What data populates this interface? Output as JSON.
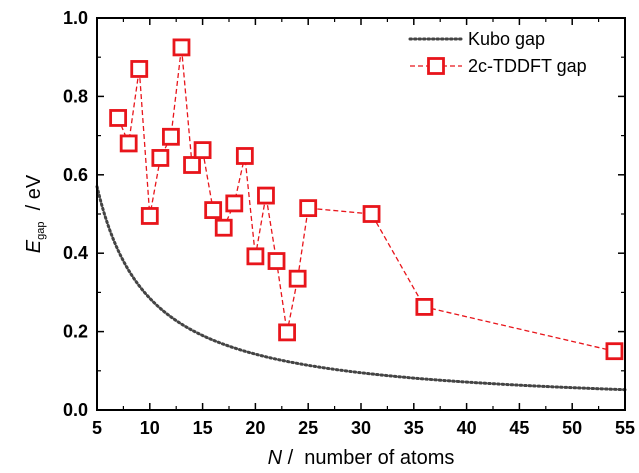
{
  "chart_data": {
    "type": "line",
    "xlabel": {
      "symbol": "N",
      "separator": " /  ",
      "text": "number of atoms"
    },
    "ylabel": {
      "symbol": "E",
      "subscript": "gap",
      "separator": "  / ",
      "unit": "eV"
    },
    "xlim": [
      5,
      55
    ],
    "ylim": [
      0.0,
      1.0
    ],
    "xticks": [
      5,
      10,
      15,
      20,
      25,
      30,
      35,
      40,
      45,
      50,
      55
    ],
    "yticks": [
      "0.0",
      "0.2",
      "0.4",
      "0.6",
      "0.8",
      "1.0"
    ],
    "grid": false,
    "legend_position": "top-right",
    "series": [
      {
        "name": "Kubo gap",
        "style": "dotted-line",
        "color": "#444444",
        "formula": "E = 2.85 / N",
        "x_range": [
          5,
          55
        ]
      },
      {
        "name": "2c-TDDFT gap",
        "style": "dashed-line-square-markers",
        "color": "#e8151b",
        "x": [
          7,
          8,
          9,
          10,
          11,
          12,
          13,
          14,
          15,
          16,
          17,
          18,
          19,
          20,
          21,
          22,
          23,
          24,
          25,
          31,
          36,
          54
        ],
        "y": [
          0.745,
          0.68,
          0.87,
          0.495,
          0.643,
          0.697,
          0.925,
          0.625,
          0.663,
          0.51,
          0.465,
          0.527,
          0.648,
          0.392,
          0.547,
          0.38,
          0.198,
          0.335,
          0.515,
          0.5,
          0.263,
          0.15
        ]
      }
    ]
  }
}
